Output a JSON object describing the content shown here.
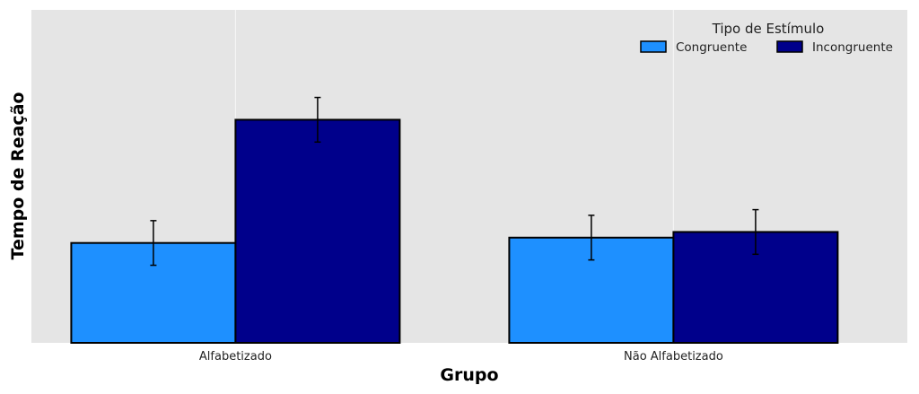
{
  "chart_data": {
    "type": "bar",
    "categories": [
      "Alfabetizado",
      "Não Alfabetizado"
    ],
    "series": [
      {
        "name": "Congruente",
        "values": [
          30,
          31.6
        ],
        "errors": [
          6.7,
          6.7
        ],
        "color": "#1E90FF"
      },
      {
        "name": "Incongruente",
        "values": [
          67,
          33.3
        ],
        "errors": [
          6.7,
          6.7
        ],
        "color": "#00008B"
      }
    ],
    "xlabel": "Grupo",
    "ylabel": "Tempo de Reação",
    "ylim": [
      0,
      100
    ],
    "y_ticks_visible": false,
    "legend": {
      "title": "Tipo de Estímulo",
      "position": "top-right",
      "columns": 2
    },
    "grid": true,
    "background": "#E5E5E5",
    "gridline_color": "#F5F5F5",
    "bar_edge_color": "#000000"
  }
}
